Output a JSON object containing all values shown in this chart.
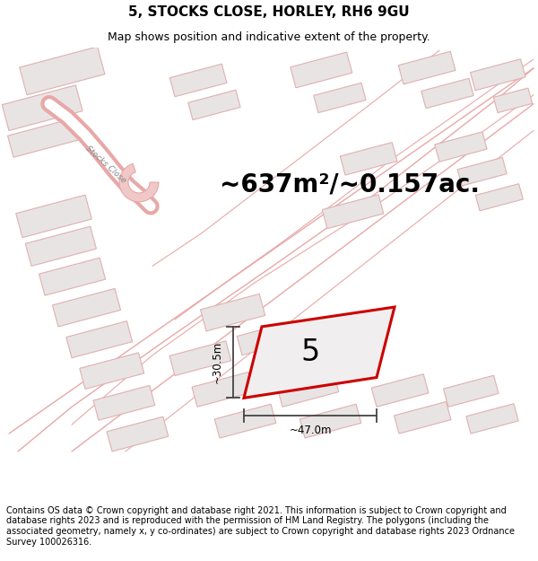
{
  "title": "5, STOCKS CLOSE, HORLEY, RH6 9GU",
  "subtitle": "Map shows position and indicative extent of the property.",
  "area_text": "~637m²/~0.157ac.",
  "label_number": "5",
  "dim_width": "~47.0m",
  "dim_height": "~30.5m",
  "footer": "Contains OS data © Crown copyright and database right 2021. This information is subject to Crown copyright and database rights 2023 and is reproduced with the permission of HM Land Registry. The polygons (including the associated geometry, namely x, y co-ordinates) are subject to Crown copyright and database rights 2023 Ordnance Survey 100026316.",
  "bg_color": "#ffffff",
  "highlight_color": "#cc0000",
  "plot_fill": "#f0eeee",
  "road_color": "#f0c8c8",
  "road_border": "#e8a8a8",
  "building_fill": "#e8e4e4",
  "building_edge": "#e0b0b0",
  "dim_line_color": "#444444",
  "title_fontsize": 11,
  "subtitle_fontsize": 9,
  "area_fontsize": 20,
  "label_fontsize": 24,
  "dim_fontsize": 8.5,
  "footer_fontsize": 7.0
}
